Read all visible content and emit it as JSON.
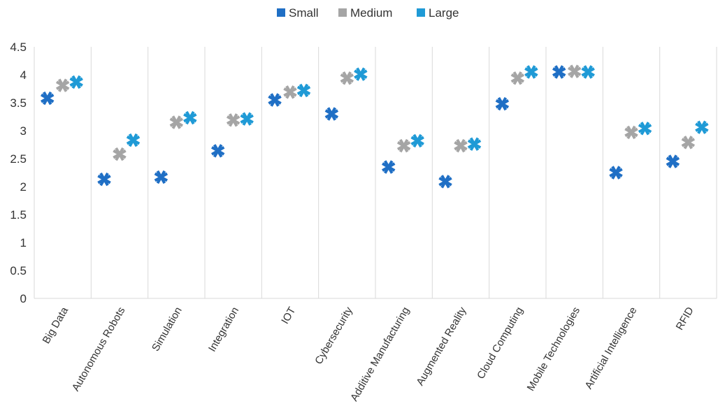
{
  "chart_data": {
    "type": "scatter",
    "title": "",
    "xlabel": "",
    "ylabel": "",
    "ylim": [
      0,
      4.5
    ],
    "yticks": [
      "0",
      "0.5",
      "1",
      "1.5",
      "2",
      "2.5",
      "3",
      "3.5",
      "4",
      "4.5"
    ],
    "grid": "vertical separators between categories",
    "legend_position": "top-center",
    "marker": "asterisk",
    "categories": [
      "Big Data",
      "Autonomous Robots",
      "Simulation",
      "Integration",
      "IOT",
      "Cybersecurity",
      "Additive Manufacturing",
      "Augmented Reality",
      "Cloud Computing",
      "Mobile Technologies",
      "Artificial Intelligence",
      "RFID"
    ],
    "series": [
      {
        "name": "Small",
        "color": "#1f6fc5",
        "values": [
          3.58,
          2.13,
          2.17,
          2.64,
          3.55,
          3.3,
          2.35,
          2.09,
          3.48,
          4.05,
          2.25,
          2.45
        ]
      },
      {
        "name": "Medium",
        "color": "#a5a5a5",
        "values": [
          3.81,
          2.58,
          3.15,
          3.19,
          3.69,
          3.94,
          2.73,
          2.73,
          3.94,
          4.06,
          2.97,
          2.79
        ]
      },
      {
        "name": "Large",
        "color": "#1f9ad6",
        "values": [
          3.87,
          2.83,
          3.23,
          3.21,
          3.72,
          4.01,
          2.82,
          2.76,
          4.05,
          4.05,
          3.04,
          3.06
        ]
      }
    ]
  }
}
